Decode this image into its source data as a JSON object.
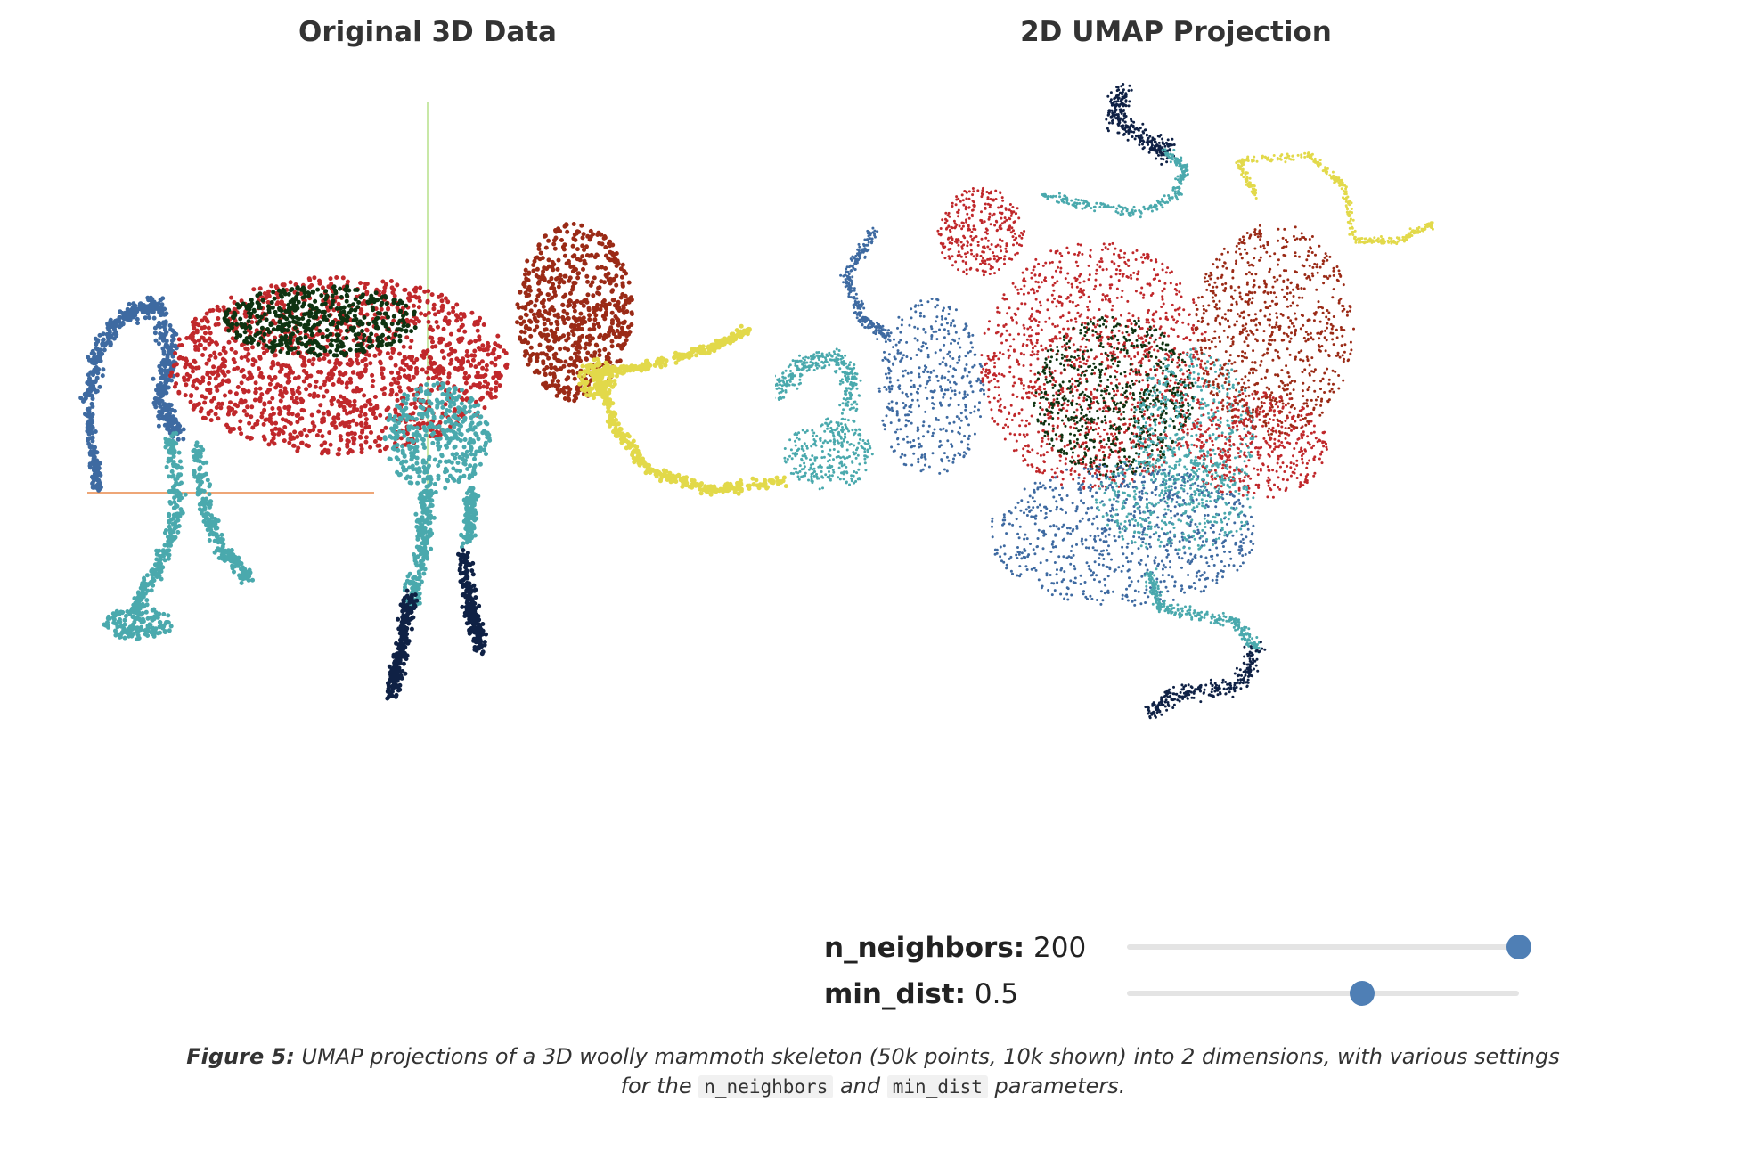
{
  "panels": {
    "left_title": "Original 3D Data",
    "right_title": "2D UMAP Projection"
  },
  "colors": {
    "body": "#c0282b",
    "back": "#0e3311",
    "head": "#9a2a16",
    "tusk": "#e2d94a",
    "front_leg": "#4aa9ad",
    "hind_upper": "#3e6aa1",
    "foot": "#0f2145",
    "axis_green": "#b6e08a",
    "axis_orange": "#e9894a"
  },
  "controls": {
    "n_neighbors": {
      "label": "n_neighbors:",
      "value": "200",
      "fraction": 1.0
    },
    "min_dist": {
      "label": "min_dist:",
      "value": "0.5",
      "fraction": 0.6
    }
  },
  "caption": {
    "figure_label": "Figure 5:",
    "text_before": " UMAP projections of a 3D woolly mammoth skeleton (50k points, 10k shown) into 2 dimensions, with various settings for the ",
    "code1": "n_neighbors",
    "text_middle": " and ",
    "code2": "min_dist",
    "text_after": " parameters."
  }
}
